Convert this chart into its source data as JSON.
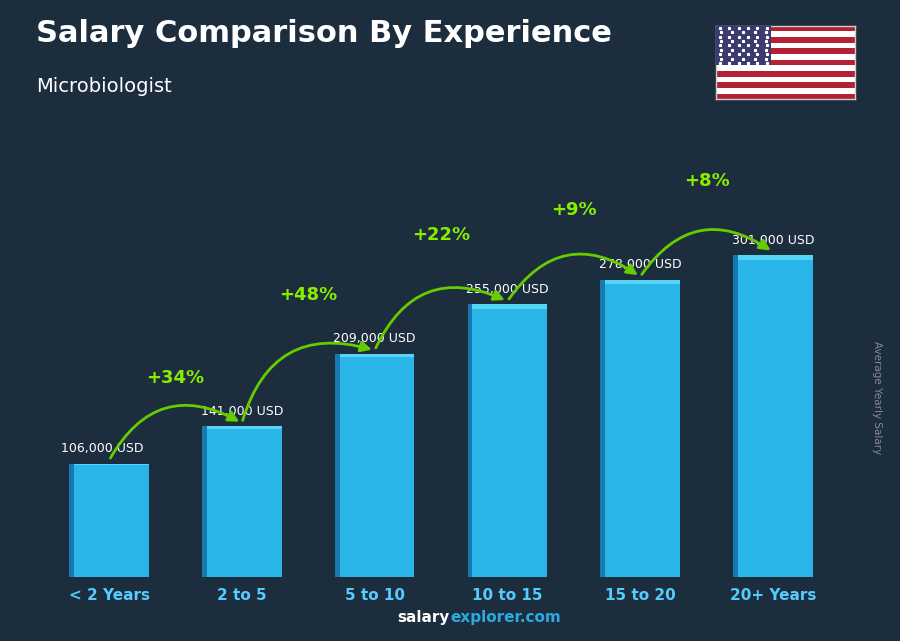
{
  "title": "Salary Comparison By Experience",
  "subtitle": "Microbiologist",
  "ylabel": "Average Yearly Salary",
  "categories": [
    "< 2 Years",
    "2 to 5",
    "5 to 10",
    "10 to 15",
    "15 to 20",
    "20+ Years"
  ],
  "values": [
    106000,
    141000,
    209000,
    255000,
    278000,
    301000
  ],
  "value_labels": [
    "106,000 USD",
    "141,000 USD",
    "209,000 USD",
    "255,000 USD",
    "278,000 USD",
    "301,000 USD"
  ],
  "pct_changes": [
    "+34%",
    "+48%",
    "+22%",
    "+9%",
    "+8%"
  ],
  "bar_color": "#29B5E8",
  "bar_color_dark": "#1878B0",
  "background_color": "#1c2d3e",
  "title_color": "#FFFFFF",
  "subtitle_color": "#FFFFFF",
  "value_label_color": "#FFFFFF",
  "pct_color": "#88EE00",
  "arrow_color": "#66CC00",
  "category_color": "#55CCFF",
  "ylabel_color": "#888899",
  "footer_salary_color": "#FFFFFF",
  "footer_explorer_color": "#29ABE2",
  "ylim": [
    0,
    360000
  ],
  "bar_width": 0.6
}
